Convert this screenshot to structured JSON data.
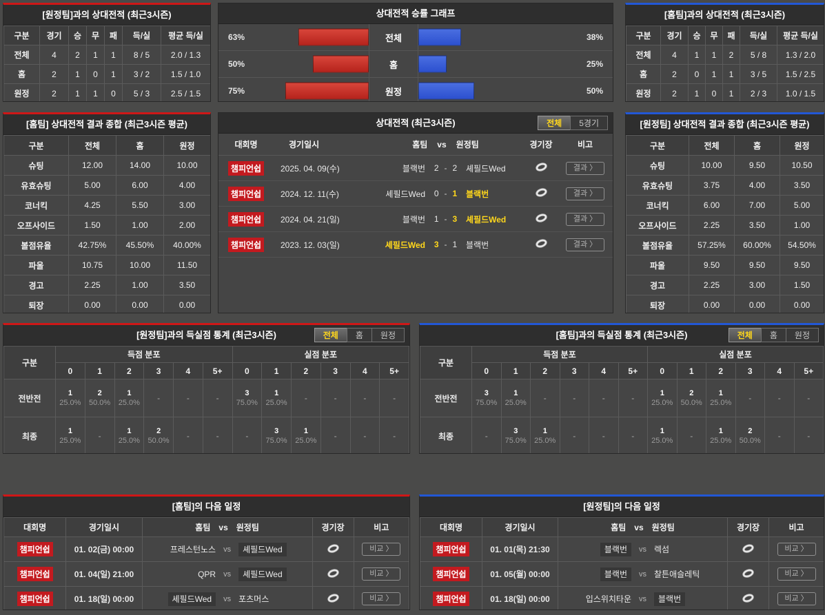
{
  "colors": {
    "accent_red": "#cf1717",
    "accent_blue": "#2257d6",
    "bar_red": "#b5231c",
    "bar_red_light": "#d8453a",
    "bar_blue": "#2c50cf",
    "bar_blue_light": "#4a6ee0",
    "win_yellow": "#ffd71c",
    "badge_red": "#c31a1f"
  },
  "chart_data": {
    "type": "bar",
    "title": "상대전적 승률 그래프",
    "categories": [
      "전체",
      "홈",
      "원정"
    ],
    "series": [
      {
        "name": "left-red",
        "color": "#b5231c",
        "values": [
          63,
          50,
          75
        ]
      },
      {
        "name": "right-blue",
        "color": "#2c50cf",
        "values": [
          38,
          25,
          50
        ]
      }
    ],
    "unit": "%",
    "xlim": [
      0,
      100
    ],
    "legend": "none"
  },
  "panels": {
    "away_h2h": {
      "title": "[원정팀]과의 상대전적 (최근3시즌)",
      "headers": [
        "구분",
        "경기",
        "승",
        "무",
        "패",
        "득/실",
        "평균 득/실"
      ],
      "rows": [
        {
          "label": "전체",
          "cells": [
            "4",
            "2",
            "1",
            "1",
            "8 / 5",
            "2.0 / 1.3"
          ]
        },
        {
          "label": "홈",
          "cells": [
            "2",
            "1",
            "0",
            "1",
            "3 / 2",
            "1.5 / 1.0"
          ]
        },
        {
          "label": "원정",
          "cells": [
            "2",
            "1",
            "1",
            "0",
            "5 / 3",
            "2.5 / 1.5"
          ]
        }
      ]
    },
    "winrate_chart": {
      "title": "상대전적 승률 그래프",
      "rows": [
        {
          "label": "전체",
          "home": "63%",
          "home_pct": 63,
          "away": "38%",
          "away_pct": 38
        },
        {
          "label": "홈",
          "home": "50%",
          "home_pct": 50,
          "away": "25%",
          "away_pct": 25
        },
        {
          "label": "원정",
          "home": "75%",
          "home_pct": 75,
          "away": "50%",
          "away_pct": 50
        }
      ]
    },
    "home_h2h": {
      "title": "[홈팀]과의 상대전적 (최근3시즌)",
      "headers": [
        "구분",
        "경기",
        "승",
        "무",
        "패",
        "득/실",
        "평균 득/실"
      ],
      "rows": [
        {
          "label": "전체",
          "cells": [
            "4",
            "1",
            "1",
            "2",
            "5 / 8",
            "1.3 / 2.0"
          ]
        },
        {
          "label": "홈",
          "cells": [
            "2",
            "0",
            "1",
            "1",
            "3 / 5",
            "1.5 / 2.5"
          ]
        },
        {
          "label": "원정",
          "cells": [
            "2",
            "1",
            "0",
            "1",
            "2 / 3",
            "1.0 / 1.5"
          ]
        }
      ]
    },
    "home_summary": {
      "title": "[홈팀] 상대전적 결과 종합 (최근3시즌 평균)",
      "headers": [
        "구분",
        "전체",
        "홈",
        "원정"
      ],
      "rows": [
        {
          "label": "슈팅",
          "cells": [
            "12.00",
            "14.00",
            "10.00"
          ]
        },
        {
          "label": "유효슈팅",
          "cells": [
            "5.00",
            "6.00",
            "4.00"
          ]
        },
        {
          "label": "코너킥",
          "cells": [
            "4.25",
            "5.50",
            "3.00"
          ]
        },
        {
          "label": "오프사이드",
          "cells": [
            "1.50",
            "1.00",
            "2.00"
          ]
        },
        {
          "label": "볼점유율",
          "cells": [
            "42.75%",
            "45.50%",
            "40.00%"
          ]
        },
        {
          "label": "파울",
          "cells": [
            "10.75",
            "10.00",
            "11.50"
          ]
        },
        {
          "label": "경고",
          "cells": [
            "2.25",
            "1.00",
            "3.50"
          ]
        },
        {
          "label": "퇴장",
          "cells": [
            "0.00",
            "0.00",
            "0.00"
          ]
        }
      ]
    },
    "away_summary": {
      "title": "[원정팀] 상대전적 결과 종합 (최근3시즌 평균)",
      "headers": [
        "구분",
        "전체",
        "홈",
        "원정"
      ],
      "rows": [
        {
          "label": "슈팅",
          "cells": [
            "10.00",
            "9.50",
            "10.50"
          ]
        },
        {
          "label": "유효슈팅",
          "cells": [
            "3.75",
            "4.00",
            "3.50"
          ]
        },
        {
          "label": "코너킥",
          "cells": [
            "6.00",
            "7.00",
            "5.00"
          ]
        },
        {
          "label": "오프사이드",
          "cells": [
            "2.25",
            "3.50",
            "1.00"
          ]
        },
        {
          "label": "볼점유율",
          "cells": [
            "57.25%",
            "60.00%",
            "54.50%"
          ]
        },
        {
          "label": "파울",
          "cells": [
            "9.50",
            "9.50",
            "9.50"
          ]
        },
        {
          "label": "경고",
          "cells": [
            "2.25",
            "3.00",
            "1.50"
          ]
        },
        {
          "label": "퇴장",
          "cells": [
            "0.00",
            "0.00",
            "0.00"
          ]
        }
      ]
    },
    "h2h_matches": {
      "title": "상대전적 (최근3시즌)",
      "filters": [
        {
          "label": "전체",
          "active": true
        },
        {
          "label": "5경기",
          "active": false
        }
      ],
      "headers": {
        "league": "대회명",
        "date": "경기일시",
        "home": "홈팀",
        "vs": "vs",
        "away": "원정팀",
        "stadium": "경기장",
        "note": "비고"
      },
      "action_label": "결과 〉",
      "score_separator": "-",
      "rows": [
        {
          "league": "챔피언쉽",
          "date": "2025. 04. 09(수)",
          "home": "블랙번",
          "home_score": "2",
          "away_score": "2",
          "away": "셰필드Wed",
          "winner": "none"
        },
        {
          "league": "챔피언쉽",
          "date": "2024. 12. 11(수)",
          "home": "셰필드Wed",
          "home_score": "0",
          "away_score": "1",
          "away": "블랙번",
          "winner": "away"
        },
        {
          "league": "챔피언쉽",
          "date": "2024. 04. 21(일)",
          "home": "블랙번",
          "home_score": "1",
          "away_score": "3",
          "away": "셰필드Wed",
          "winner": "away"
        },
        {
          "league": "챔피언쉽",
          "date": "2023. 12. 03(일)",
          "home": "셰필드Wed",
          "home_score": "3",
          "away_score": "1",
          "away": "블랙번",
          "winner": "home"
        }
      ]
    },
    "away_goals": {
      "title": "[원정팀]과의 득실점 통계 (최근3시즌)",
      "filters": [
        {
          "label": "전체",
          "active": true
        },
        {
          "label": "홈",
          "active": false
        },
        {
          "label": "원정",
          "active": false
        }
      ],
      "corner_header": "구분",
      "group_headers": [
        "득점 분포",
        "실점 분포"
      ],
      "col_headers": [
        "0",
        "1",
        "2",
        "3",
        "4",
        "5+"
      ],
      "rows": [
        {
          "label": "전반전",
          "scored": [
            {
              "c": "1",
              "p": "25.0%"
            },
            {
              "c": "2",
              "p": "50.0%"
            },
            {
              "c": "1",
              "p": "25.0%"
            },
            "-",
            "-",
            "-"
          ],
          "conceded": [
            {
              "c": "3",
              "p": "75.0%"
            },
            {
              "c": "1",
              "p": "25.0%"
            },
            "-",
            "-",
            "-",
            "-"
          ]
        },
        {
          "label": "최종",
          "scored": [
            {
              "c": "1",
              "p": "25.0%"
            },
            "-",
            {
              "c": "1",
              "p": "25.0%"
            },
            {
              "c": "2",
              "p": "50.0%"
            },
            "-",
            "-"
          ],
          "conceded": [
            "-",
            {
              "c": "3",
              "p": "75.0%"
            },
            {
              "c": "1",
              "p": "25.0%"
            },
            "-",
            "-",
            "-"
          ]
        }
      ]
    },
    "home_goals": {
      "title": "[홈팀]과의 득실점 통계 (최근3시즌)",
      "filters": [
        {
          "label": "전체",
          "active": true
        },
        {
          "label": "홈",
          "active": false
        },
        {
          "label": "원정",
          "active": false
        }
      ],
      "corner_header": "구분",
      "group_headers": [
        "득점 분포",
        "실점 분포"
      ],
      "col_headers": [
        "0",
        "1",
        "2",
        "3",
        "4",
        "5+"
      ],
      "rows": [
        {
          "label": "전반전",
          "scored": [
            {
              "c": "3",
              "p": "75.0%"
            },
            {
              "c": "1",
              "p": "25.0%"
            },
            "-",
            "-",
            "-",
            "-"
          ],
          "conceded": [
            {
              "c": "1",
              "p": "25.0%"
            },
            {
              "c": "2",
              "p": "50.0%"
            },
            {
              "c": "1",
              "p": "25.0%"
            },
            "-",
            "-",
            "-"
          ]
        },
        {
          "label": "최종",
          "scored": [
            "-",
            {
              "c": "3",
              "p": "75.0%"
            },
            {
              "c": "1",
              "p": "25.0%"
            },
            "-",
            "-",
            "-"
          ],
          "conceded": [
            {
              "c": "1",
              "p": "25.0%"
            },
            "-",
            {
              "c": "1",
              "p": "25.0%"
            },
            {
              "c": "2",
              "p": "50.0%"
            },
            "-",
            "-"
          ]
        }
      ]
    },
    "home_schedule": {
      "title": "[홈팀]의 다음 일정",
      "headers": {
        "league": "대회명",
        "date": "경기일시",
        "home": "홈팀",
        "vs": "vs",
        "away": "원정팀",
        "stadium": "경기장",
        "note": "비고"
      },
      "action_label": "비교 〉",
      "rows": [
        {
          "league": "챔피언쉽",
          "date": "01. 02(금) 00:00",
          "home": "프레스턴노스",
          "away": "셰필드Wed",
          "highlight": "away"
        },
        {
          "league": "챔피언쉽",
          "date": "01. 04(일) 21:00",
          "home": "QPR",
          "away": "셰필드Wed",
          "highlight": "away"
        },
        {
          "league": "챔피언쉽",
          "date": "01. 18(일) 00:00",
          "home": "셰필드Wed",
          "away": "포츠머스",
          "highlight": "home"
        }
      ]
    },
    "away_schedule": {
      "title": "[원정팀]의 다음 일정",
      "headers": {
        "league": "대회명",
        "date": "경기일시",
        "home": "홈팀",
        "vs": "vs",
        "away": "원정팀",
        "stadium": "경기장",
        "note": "비고"
      },
      "action_label": "비교 〉",
      "rows": [
        {
          "league": "챔피언쉽",
          "date": "01. 01(목) 21:30",
          "home": "블랙번",
          "away": "렉섬",
          "highlight": "home"
        },
        {
          "league": "챔피언쉽",
          "date": "01. 05(월) 00:00",
          "home": "블랙번",
          "away": "찰튼애슬레틱",
          "highlight": "home"
        },
        {
          "league": "챔피언쉽",
          "date": "01. 18(일) 00:00",
          "home": "입스위치타운",
          "away": "블랙번",
          "highlight": "away"
        }
      ]
    }
  }
}
